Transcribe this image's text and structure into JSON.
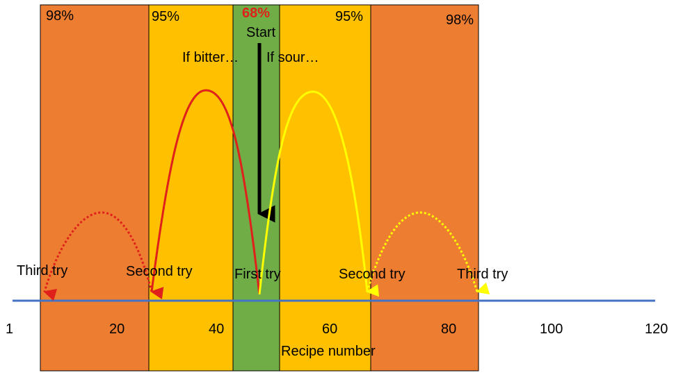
{
  "colors": {
    "outer_band": "#ED7D31",
    "inner_band": "#FFC000",
    "center_band": "#70AD47",
    "axis_line": "#4472C4",
    "bitter_arc": "#E0201A",
    "sour_arc": "#FFFF00",
    "start_arrow": "#000000",
    "center_pct": "#E0201A"
  },
  "bands": {
    "outer_left_pct": "98%",
    "inner_left_pct": "95%",
    "center_pct": "68%",
    "inner_right_pct": "95%",
    "outer_right_pct": "98%"
  },
  "labels": {
    "start": "Start",
    "if_bitter": "If bitter…",
    "if_sour": "If sour…",
    "third_try_left": "Third try",
    "second_try_left": "Second try",
    "first_try": "First try",
    "second_try_right": "Second try",
    "third_try_right": "Third try",
    "axis_title": "Recipe number"
  },
  "axis": {
    "ticks": [
      "1",
      "20",
      "40",
      "60",
      "80",
      "100",
      "120"
    ]
  }
}
